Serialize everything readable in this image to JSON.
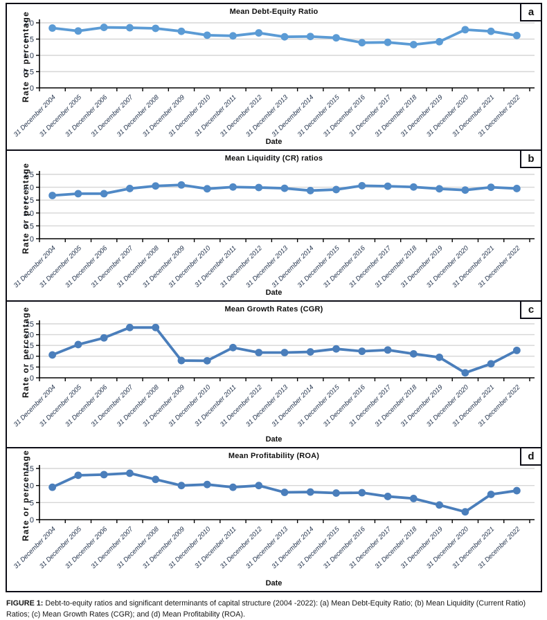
{
  "figure": {
    "caption_label": "FIGURE 1:",
    "caption_text": "Debt-to-equity ratios and significant determinants of capital structure (2004 -2022): (a) Mean Debt-Equity Ratio; (b) Mean Liquidity (Current Ratio) Ratios; (c) Mean Growth Rates (CGR); and (d) Mean Profitability (ROA)."
  },
  "colors": {
    "grid": "#D6D6D6",
    "axis": "#000000",
    "tick_text": "#24344D",
    "panel_border": "#0c0c16"
  },
  "chart_data": [
    {
      "id": "a",
      "type": "line",
      "panel_label": "a",
      "title": "Mean Debt-Equity Ratio",
      "xlabel": "Date",
      "ylabel": "Rate or percentage",
      "ylim": [
        0,
        2.0
      ],
      "yticks": [
        0,
        0.5,
        1.0,
        1.5,
        2.0
      ],
      "ytick_labels": [
        "0",
        "0.5",
        "1.0",
        "1.5",
        "2.0"
      ],
      "grid": true,
      "legend": "none",
      "line_color": "#5B9BD5",
      "categories": [
        "31 December 2004",
        "31 December 2005",
        "31 December 2006",
        "31 December 2007",
        "31 December 2008",
        "31 December 2009",
        "31 December 2010",
        "31 December 2011",
        "31 December 2012",
        "31 December 2013",
        "31 December 2014",
        "31 December 2015",
        "31 December 2016",
        "31 December 2017",
        "31 December 2018",
        "31 December 2019",
        "31 December 2020",
        "31 December 2021",
        "31 December 2022"
      ],
      "values": [
        1.84,
        1.75,
        1.86,
        1.85,
        1.83,
        1.74,
        1.62,
        1.6,
        1.69,
        1.57,
        1.58,
        1.54,
        1.39,
        1.4,
        1.33,
        1.42,
        1.79,
        1.74,
        1.61
      ]
    },
    {
      "id": "b",
      "type": "line",
      "panel_label": "b",
      "title": "Mean Liquidity (CR) ratios",
      "xlabel": "Date",
      "ylabel": "Rate or percentage",
      "ylim": [
        0,
        2.5
      ],
      "yticks": [
        0,
        0.5,
        1.0,
        1.5,
        2.0,
        2.5
      ],
      "ytick_labels": [
        "0",
        "0.5",
        "1.0",
        "1.5",
        "2.0",
        "2.5"
      ],
      "grid": true,
      "legend": "none",
      "line_color": "#5089C6",
      "categories": [
        "31 December 2004",
        "31 December 2005",
        "31 December 2006",
        "31 December 2007",
        "31 December 2008",
        "31 December 2009",
        "31 December 2010",
        "31 December 2011",
        "31 December 2012",
        "31 December 2013",
        "31 December 2014",
        "31 December 2015",
        "31 December 2016",
        "31 December 2017",
        "31 December 2018",
        "31 December 2019",
        "31 December 2020",
        "31 December 2021",
        "31 December 2022"
      ],
      "values": [
        1.68,
        1.75,
        1.75,
        1.95,
        2.05,
        2.09,
        1.94,
        2.01,
        1.99,
        1.96,
        1.87,
        1.91,
        2.06,
        2.04,
        2.01,
        1.94,
        1.89,
        2.0,
        1.95
      ]
    },
    {
      "id": "c",
      "type": "line",
      "panel_label": "c",
      "title": "Mean Growth Rates (CGR)",
      "xlabel": "Date",
      "ylabel": "Rate or percentage",
      "ylim": [
        0,
        25
      ],
      "yticks": [
        0,
        5,
        10,
        15,
        20,
        25
      ],
      "ytick_labels": [
        "0",
        "5",
        "10",
        "15",
        "20",
        "25"
      ],
      "grid": true,
      "legend": "none",
      "line_color": "#4A7EBB",
      "categories": [
        "31 December 2004",
        "31 December 2005",
        "31 December 2006",
        "31 December 2007",
        "31 December 2008",
        "31 December 2009",
        "31 December 2010",
        "31 December 2011",
        "31 December 2012",
        "31 December 2013",
        "31 December 2014",
        "31 December 2015",
        "31 December 2016",
        "31 December 2017",
        "31 December 2018",
        "31 December 2019",
        "31 December 2020",
        "31 December 2021",
        "31 December 2022"
      ],
      "values": [
        10.6,
        15.4,
        18.5,
        23.3,
        23.3,
        8.0,
        7.9,
        14.0,
        11.7,
        11.7,
        12.0,
        13.4,
        12.3,
        12.9,
        11.1,
        9.5,
        2.3,
        6.5,
        12.7
      ]
    },
    {
      "id": "d",
      "type": "line",
      "panel_label": "d",
      "title": "Mean Profitability (ROA)",
      "xlabel": "Date",
      "ylabel": "Rate or percentage",
      "ylim": [
        0,
        15
      ],
      "yticks": [
        0,
        5,
        10,
        15
      ],
      "ytick_labels": [
        "0",
        "5",
        "10",
        "15"
      ],
      "grid": true,
      "legend": "none",
      "line_color": "#4A7EBB",
      "categories": [
        "31 December 2004",
        "31 December 2005",
        "31 December 2006",
        "31 December 2007",
        "31 December 2008",
        "31 December 2009",
        "31 December 2010",
        "31 December 2011",
        "31 December 2012",
        "31 December 2013",
        "31 December 2014",
        "31 December 2015",
        "31 December 2016",
        "31 December 2017",
        "31 December 2018",
        "31 December 2019",
        "31 December 2020",
        "31 December 2021",
        "31 December 2022"
      ],
      "values": [
        9.5,
        13.0,
        13.2,
        13.6,
        11.8,
        10.0,
        10.3,
        9.5,
        10.0,
        8.0,
        8.1,
        7.8,
        7.9,
        6.8,
        6.2,
        4.3,
        2.3,
        7.4,
        8.5
      ]
    }
  ]
}
